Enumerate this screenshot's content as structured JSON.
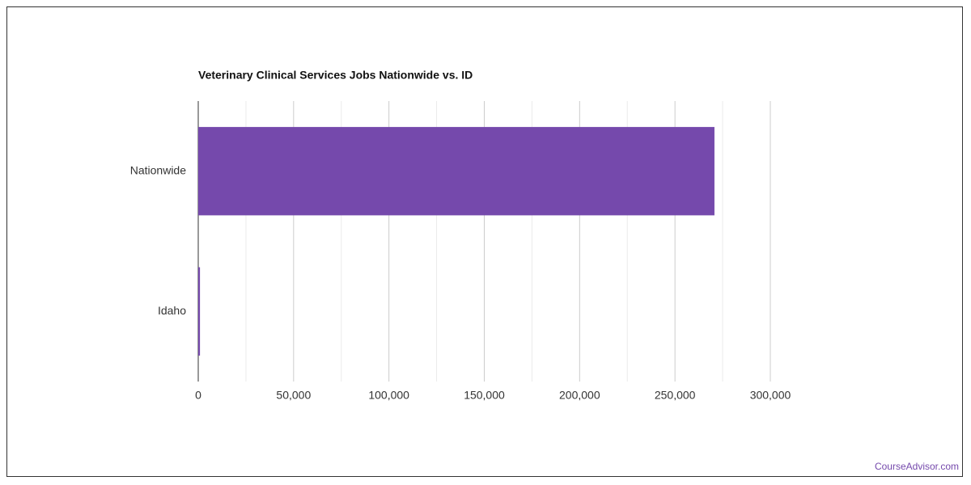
{
  "chart_data": {
    "type": "bar",
    "orientation": "horizontal",
    "title": "Veterinary Clinical Services Jobs Nationwide vs. ID",
    "categories": [
      "Nationwide",
      "Idaho"
    ],
    "values": [
      270700,
      900
    ],
    "color": "#7549ac",
    "xlim": [
      0,
      300000
    ],
    "xticks": [
      0,
      {
        "value": 50000,
        "label": "50,000"
      },
      {
        "value": 100000,
        "label": "100,000"
      },
      {
        "value": 150000,
        "label": "150,000"
      },
      {
        "value": 200000,
        "label": "200,000"
      },
      {
        "value": 250000,
        "label": "250,000"
      },
      {
        "value": 300000,
        "label": "300,000"
      }
    ],
    "minor_xticks": [
      25000,
      75000,
      125000,
      175000,
      225000,
      275000
    ],
    "grid": true,
    "source": "CourseAdvisor.com"
  }
}
